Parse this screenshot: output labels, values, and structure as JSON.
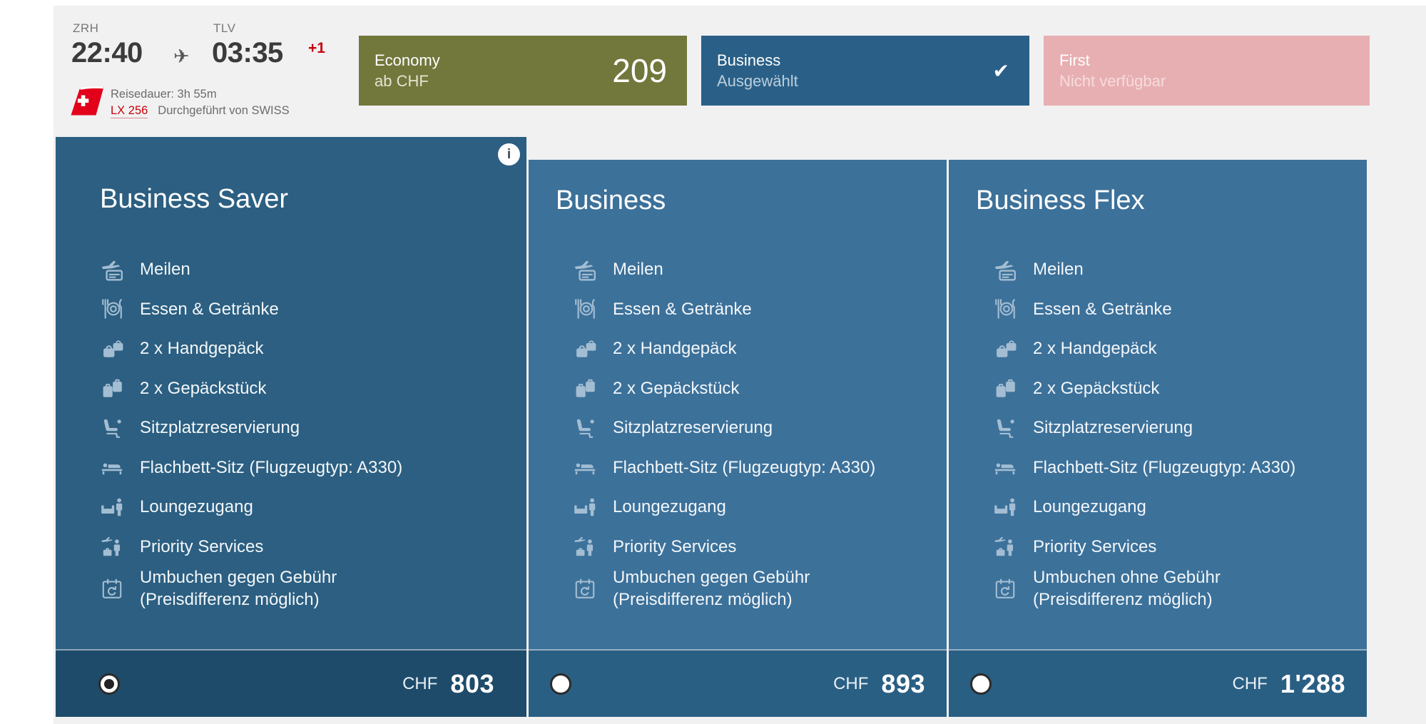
{
  "flight": {
    "origin_code": "ZRH",
    "departure_time": "22:40",
    "plane_glyph": "✈",
    "destination_code": "TLV",
    "arrival_time": "03:35",
    "day_offset": "+1",
    "duration_label": "Reisedauer: 3h 55m",
    "flight_number": "LX 256",
    "operated_by": "Durchgeführt von SWISS"
  },
  "cabin_classes": [
    {
      "name": "Economy",
      "subtitle": "ab CHF",
      "price": "209",
      "color": "#72773C",
      "state": "available"
    },
    {
      "name": "Business",
      "subtitle": "Ausgewählt",
      "check_glyph": "✔",
      "color": "#2A6087",
      "state": "selected"
    },
    {
      "name": "First",
      "subtitle": "Nicht verfügbar",
      "color": "#E8AFB2",
      "state": "unavailable"
    }
  ],
  "fares": [
    {
      "name": "Business Saver",
      "info_glyph": "i",
      "currency": "CHF",
      "price": "803",
      "selected": true,
      "features": [
        {
          "icon": "miles-icon",
          "lines": [
            "Meilen"
          ]
        },
        {
          "icon": "meal-icon",
          "lines": [
            "Essen & Getränke"
          ]
        },
        {
          "icon": "hand-baggage-icon",
          "lines": [
            "2 x Handgepäck"
          ]
        },
        {
          "icon": "checked-baggage-icon",
          "lines": [
            "2 x Gepäckstück"
          ]
        },
        {
          "icon": "seat-reservation-icon",
          "lines": [
            "Sitzplatzreservierung"
          ]
        },
        {
          "icon": "flatbed-icon",
          "lines": [
            "Flachbett-Sitz (Flugzeugtyp: A330)"
          ]
        },
        {
          "icon": "lounge-icon",
          "lines": [
            "Loungezugang"
          ]
        },
        {
          "icon": "priority-icon",
          "lines": [
            "Priority Services"
          ]
        },
        {
          "icon": "rebooking-icon",
          "lines": [
            "Umbuchen gegen Gebühr",
            "(Preisdifferenz möglich)"
          ]
        }
      ]
    },
    {
      "name": "Business",
      "currency": "CHF",
      "price": "893",
      "selected": false,
      "features": [
        {
          "icon": "miles-icon",
          "lines": [
            "Meilen"
          ]
        },
        {
          "icon": "meal-icon",
          "lines": [
            "Essen & Getränke"
          ]
        },
        {
          "icon": "hand-baggage-icon",
          "lines": [
            "2 x Handgepäck"
          ]
        },
        {
          "icon": "checked-baggage-icon",
          "lines": [
            "2 x Gepäckstück"
          ]
        },
        {
          "icon": "seat-reservation-icon",
          "lines": [
            "Sitzplatzreservierung"
          ]
        },
        {
          "icon": "flatbed-icon",
          "lines": [
            "Flachbett-Sitz (Flugzeugtyp: A330)"
          ]
        },
        {
          "icon": "lounge-icon",
          "lines": [
            "Loungezugang"
          ]
        },
        {
          "icon": "priority-icon",
          "lines": [
            "Priority Services"
          ]
        },
        {
          "icon": "rebooking-icon",
          "lines": [
            "Umbuchen gegen Gebühr",
            "(Preisdifferenz möglich)"
          ]
        }
      ]
    },
    {
      "name": "Business Flex",
      "currency": "CHF",
      "price": "1'288",
      "selected": false,
      "features": [
        {
          "icon": "miles-icon",
          "lines": [
            "Meilen"
          ]
        },
        {
          "icon": "meal-icon",
          "lines": [
            "Essen & Getränke"
          ]
        },
        {
          "icon": "hand-baggage-icon",
          "lines": [
            "2 x Handgepäck"
          ]
        },
        {
          "icon": "checked-baggage-icon",
          "lines": [
            "2 x Gepäckstück"
          ]
        },
        {
          "icon": "seat-reservation-icon",
          "lines": [
            "Sitzplatzreservierung"
          ]
        },
        {
          "icon": "flatbed-icon",
          "lines": [
            "Flachbett-Sitz (Flugzeugtyp: A330)"
          ]
        },
        {
          "icon": "lounge-icon",
          "lines": [
            "Loungezugang"
          ]
        },
        {
          "icon": "priority-icon",
          "lines": [
            "Priority Services"
          ]
        },
        {
          "icon": "rebooking-icon",
          "lines": [
            "Umbuchen ohne Gebühr",
            "(Preisdifferenz möglich)"
          ]
        }
      ]
    }
  ],
  "colors": {
    "page_bg": "#F1F1F2",
    "economy_olive": "#72773C",
    "business_blue": "#2A6087",
    "first_pink": "#E8AFB2",
    "fare_selected_bg": "#2C5F81",
    "fare_selected_bar": "#1E4B6A",
    "fare_bg": "#3C719A",
    "fare_bar": "#2A5F84",
    "accent_red": "#C80009"
  }
}
